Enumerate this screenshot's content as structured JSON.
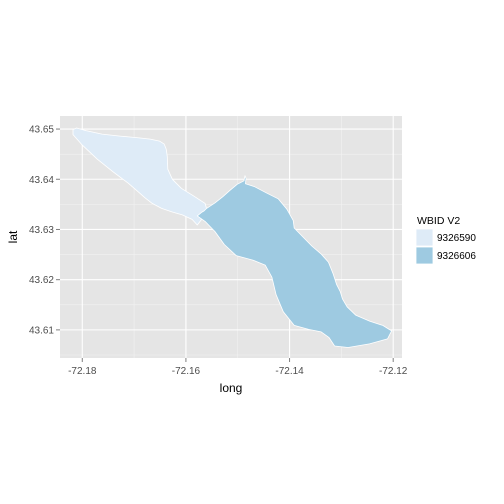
{
  "chart_data": {
    "type": "map",
    "xlabel": "long",
    "ylabel": "lat",
    "xlim": [
      -72.1843,
      -72.1183
    ],
    "ylim": [
      43.6044,
      43.6526
    ],
    "x_ticks": [
      {
        "value": -72.18,
        "label": "-72.18"
      },
      {
        "value": -72.16,
        "label": "-72.16"
      },
      {
        "value": -72.14,
        "label": "-72.14"
      },
      {
        "value": -72.12,
        "label": "-72.12"
      }
    ],
    "y_ticks": [
      {
        "value": 43.61,
        "label": "43.61"
      },
      {
        "value": 43.62,
        "label": "43.62"
      },
      {
        "value": 43.63,
        "label": "43.63"
      },
      {
        "value": 43.64,
        "label": "43.64"
      },
      {
        "value": 43.65,
        "label": "43.65"
      }
    ],
    "grid": true,
    "legend": {
      "title": "WBID V2",
      "placement": "right",
      "entries": [
        {
          "label": "9326590",
          "color": "#deebf7"
        },
        {
          "label": "9326606",
          "color": "#9ecae1"
        }
      ]
    },
    "polygons": [
      {
        "id": "9326590",
        "fill": "#deebf7",
        "coords": [
          [
            -72.1811,
            43.6502
          ],
          [
            -72.1793,
            43.6497
          ],
          [
            -72.1762,
            43.649
          ],
          [
            -72.1727,
            43.6486
          ],
          [
            -72.1695,
            43.6483
          ],
          [
            -72.1669,
            43.648
          ],
          [
            -72.1651,
            43.6476
          ],
          [
            -72.1642,
            43.647
          ],
          [
            -72.1638,
            43.646
          ],
          [
            -72.1636,
            43.6445
          ],
          [
            -72.1635,
            43.642
          ],
          [
            -72.1626,
            43.64
          ],
          [
            -72.1609,
            43.6382
          ],
          [
            -72.1584,
            43.6366
          ],
          [
            -72.1563,
            43.6352
          ],
          [
            -72.156,
            43.6341
          ],
          [
            -72.1569,
            43.6321
          ],
          [
            -72.1578,
            43.6309
          ],
          [
            -72.1588,
            43.632
          ],
          [
            -72.1607,
            43.6329
          ],
          [
            -72.1627,
            43.6335
          ],
          [
            -72.1647,
            43.6342
          ],
          [
            -72.1665,
            43.6352
          ],
          [
            -72.1679,
            43.6363
          ],
          [
            -72.1692,
            43.6375
          ],
          [
            -72.1711,
            43.6392
          ],
          [
            -72.1741,
            43.6415
          ],
          [
            -72.1771,
            43.644
          ],
          [
            -72.18,
            43.6468
          ],
          [
            -72.1818,
            43.6489
          ],
          [
            -72.1818,
            43.6499
          ]
        ]
      },
      {
        "id": "9326606",
        "fill": "#9ecae1",
        "coords": [
          [
            -72.1565,
            43.6337
          ],
          [
            -72.156,
            43.6342
          ],
          [
            -72.1544,
            43.6353
          ],
          [
            -72.1529,
            43.6365
          ],
          [
            -72.1515,
            43.6378
          ],
          [
            -72.1501,
            43.639
          ],
          [
            -72.1488,
            43.6397
          ],
          [
            -72.1486,
            43.6407
          ],
          [
            -72.1484,
            43.6402
          ],
          [
            -72.1485,
            43.6391
          ],
          [
            -72.1467,
            43.6385
          ],
          [
            -72.1445,
            43.6373
          ],
          [
            -72.1422,
            43.6361
          ],
          [
            -72.1405,
            43.634
          ],
          [
            -72.1393,
            43.6318
          ],
          [
            -72.1391,
            43.6303
          ],
          [
            -72.1374,
            43.6285
          ],
          [
            -72.1357,
            43.6267
          ],
          [
            -72.1339,
            43.6251
          ],
          [
            -72.1325,
            43.6235
          ],
          [
            -72.1316,
            43.6212
          ],
          [
            -72.1309,
            43.619
          ],
          [
            -72.1302,
            43.6176
          ],
          [
            -72.1298,
            43.6162
          ],
          [
            -72.1289,
            43.6146
          ],
          [
            -72.1272,
            43.6129
          ],
          [
            -72.1245,
            43.6117
          ],
          [
            -72.122,
            43.6109
          ],
          [
            -72.1203,
            43.6098
          ],
          [
            -72.1211,
            43.6082
          ],
          [
            -72.1246,
            43.6072
          ],
          [
            -72.1287,
            43.6065
          ],
          [
            -72.1313,
            43.6068
          ],
          [
            -72.1324,
            43.6085
          ],
          [
            -72.1339,
            43.6096
          ],
          [
            -72.1363,
            43.6101
          ],
          [
            -72.1391,
            43.6109
          ],
          [
            -72.1412,
            43.6136
          ],
          [
            -72.1426,
            43.617
          ],
          [
            -72.1434,
            43.6205
          ],
          [
            -72.1447,
            43.6229
          ],
          [
            -72.1471,
            43.6239
          ],
          [
            -72.1503,
            43.6248
          ],
          [
            -72.1526,
            43.627
          ],
          [
            -72.1544,
            43.6296
          ],
          [
            -72.1563,
            43.6316
          ],
          [
            -72.1578,
            43.6327
          ],
          [
            -72.157,
            43.6334
          ]
        ]
      }
    ]
  }
}
